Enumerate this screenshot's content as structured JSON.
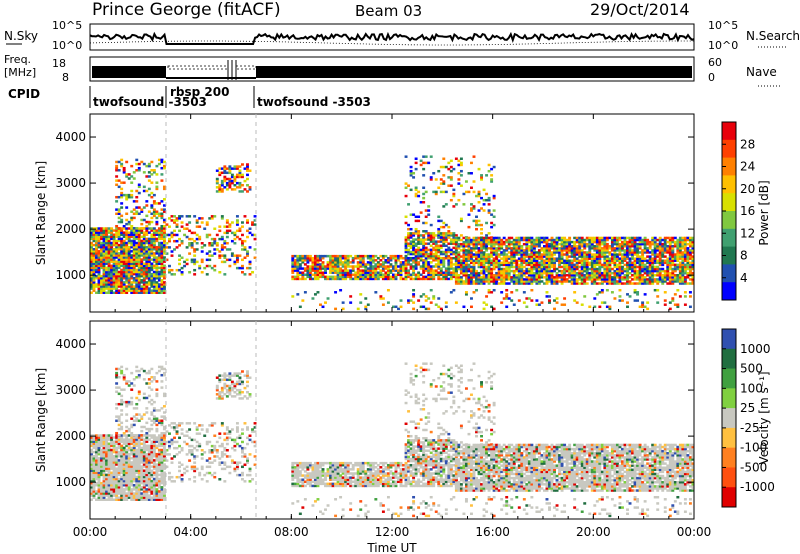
{
  "header": {
    "station": "Prince George (fitACF)",
    "beam": "Beam 03",
    "date": "29/Oct/2014"
  },
  "top_panels": {
    "nsky_label": "N.Sky",
    "nsky_ticks": [
      "10^5",
      "10^0"
    ],
    "nsearch_label": "N.Search",
    "nsearch_ticks": [
      "10^5",
      "10^0"
    ],
    "freq_label_1": "Freq.",
    "freq_label_2": "[MHz]",
    "freq_ticks": [
      "18",
      "8"
    ],
    "nave_label": "Nave",
    "nave_ticks": [
      "60",
      "0"
    ],
    "cpid_label": "CPID",
    "cpid_segments": [
      {
        "label": "twofsound -3503",
        "start_hour": 0,
        "end_hour": 3.0
      },
      {
        "label": "rbsp 200",
        "start_hour": 3.0,
        "end_hour": 6.6
      },
      {
        "label": "twofsound -3503",
        "start_hour": 6.6,
        "end_hour": 24
      }
    ]
  },
  "chart_data": [
    {
      "type": "heatmap",
      "title": "",
      "xlabel": "Time UT",
      "ylabel": "Slant Range [km]",
      "xlim": [
        0,
        24
      ],
      "ylim": [
        200,
        4500
      ],
      "x_ticks": [
        "00:00",
        "04:00",
        "08:00",
        "12:00",
        "16:00",
        "20:00",
        "00:00"
      ],
      "y_ticks": [
        "1000",
        "2000",
        "3000",
        "4000"
      ],
      "colorbar": {
        "label": "Power [dB]",
        "ticks": [
          "28",
          "24",
          "20",
          "16",
          "12",
          "8",
          "4"
        ],
        "colors": [
          "#e8000b",
          "#ff4000",
          "#ff8000",
          "#ffc000",
          "#d8e000",
          "#80c840",
          "#40a070",
          "#207850",
          "#2050b0",
          "#0000ff"
        ]
      }
    },
    {
      "type": "heatmap",
      "title": "",
      "xlabel": "Time UT",
      "ylabel": "Slant Range [km]",
      "xlim": [
        0,
        24
      ],
      "ylim": [
        200,
        4500
      ],
      "x_ticks": [
        "00:00",
        "04:00",
        "08:00",
        "12:00",
        "16:00",
        "20:00",
        "00:00"
      ],
      "y_ticks": [
        "1000",
        "2000",
        "3000",
        "4000"
      ],
      "colorbar": {
        "label": "Velocity [m s⁻¹]",
        "ticks": [
          "1000",
          "500",
          "100",
          "25",
          "-25",
          "-100",
          "-500",
          "-1000"
        ],
        "colors": [
          "#3050b0",
          "#206e40",
          "#40a040",
          "#80d040",
          "#c8c8c0",
          "#ffc040",
          "#ff8020",
          "#ff5010",
          "#e00000"
        ]
      }
    }
  ]
}
